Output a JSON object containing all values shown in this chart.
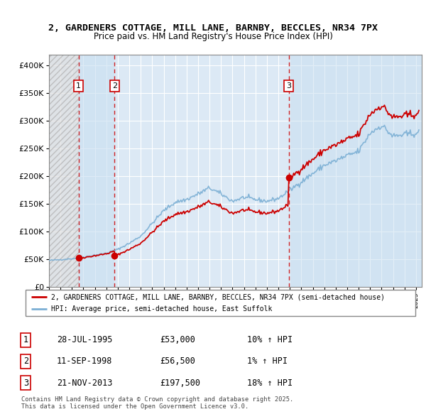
{
  "title_line1": "2, GARDENERS COTTAGE, MILL LANE, BARNBY, BECCLES, NR34 7PX",
  "title_line2": "Price paid vs. HM Land Registry's House Price Index (HPI)",
  "ylim": [
    0,
    420000
  ],
  "yticks": [
    0,
    50000,
    100000,
    150000,
    200000,
    250000,
    300000,
    350000,
    400000
  ],
  "ytick_labels": [
    "£0",
    "£50K",
    "£100K",
    "£150K",
    "£200K",
    "£250K",
    "£300K",
    "£350K",
    "£400K"
  ],
  "xlim_start": 1993.0,
  "xlim_end": 2025.5,
  "plot_bg_color": "#dce9f5",
  "hatch_region_end": 1995.58,
  "blue_band_1_start": 1995.58,
  "blue_band_1_end": 1998.72,
  "blue_band_2_start": 2013.9,
  "blue_band_2_end": 2025.5,
  "grid_color": "#ffffff",
  "sale_dates_num": [
    1995.58,
    1998.72,
    2013.9
  ],
  "sale_prices": [
    53000,
    56500,
    197500
  ],
  "sale_labels": [
    "1",
    "2",
    "3"
  ],
  "hpi_line_color": "#7bafd4",
  "price_line_color": "#cc0000",
  "dashed_line_color": "#cc0000",
  "legend_line1": "2, GARDENERS COTTAGE, MILL LANE, BARNBY, BECCLES, NR34 7PX (semi-detached house)",
  "legend_line2": "HPI: Average price, semi-detached house, East Suffolk",
  "table_data": [
    [
      "1",
      "28-JUL-1995",
      "£53,000",
      "10% ↑ HPI"
    ],
    [
      "2",
      "11-SEP-1998",
      "£56,500",
      "1% ↑ HPI"
    ],
    [
      "3",
      "21-NOV-2013",
      "£197,500",
      "18% ↑ HPI"
    ]
  ],
  "footnote": "Contains HM Land Registry data © Crown copyright and database right 2025.\nThis data is licensed under the Open Government Licence v3.0."
}
